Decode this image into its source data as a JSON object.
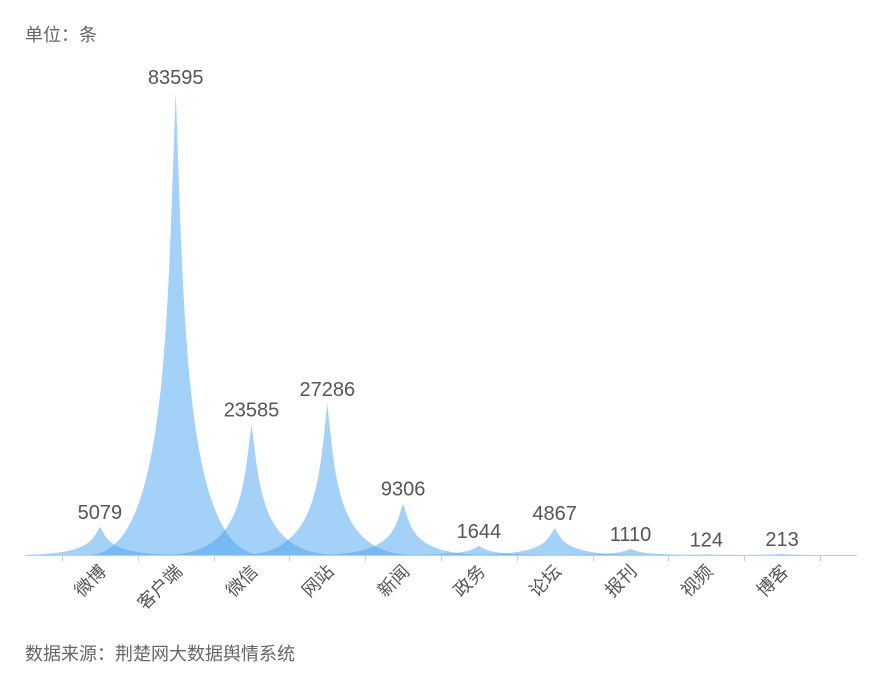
{
  "unit_label": "单位：条",
  "source_label": "数据来源：荆楚网大数据舆情系统",
  "colors": {
    "bar_fill": "#4aa3ef",
    "label_text": "#555555",
    "axis_line": "#cccccc"
  },
  "chart_data": {
    "type": "bar",
    "categories": [
      "微博",
      "客户端",
      "微信",
      "网站",
      "新闻",
      "政务",
      "论坛",
      "报刊",
      "视频",
      "博客"
    ],
    "values": [
      5079,
      83595,
      23585,
      27286,
      9306,
      1644,
      4867,
      1110,
      124,
      213
    ],
    "data_labels": true,
    "grid": false
  }
}
